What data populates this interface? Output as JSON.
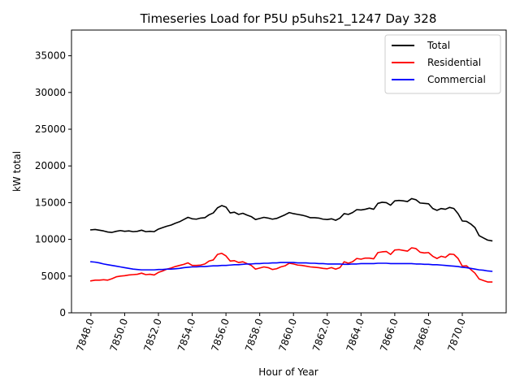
{
  "chart_data": {
    "type": "line",
    "title": "Timeseries Load for P5U p5uhs21_1247  Day 328",
    "xlabel": "Hour of Year",
    "ylabel": "kW total",
    "xlim": [
      7846.85,
      7872.6
    ],
    "ylim": [
      0,
      38500
    ],
    "xticks": [
      7848,
      7850,
      7852,
      7854,
      7856,
      7858,
      7860,
      7862,
      7864,
      7866,
      7868,
      7870
    ],
    "xtick_labels": [
      "7848.0",
      "7850.0",
      "7852.0",
      "7854.0",
      "7856.0",
      "7858.0",
      "7860.0",
      "7862.0",
      "7864.0",
      "7866.0",
      "7868.0",
      "7870.0"
    ],
    "yticks": [
      0,
      5000,
      10000,
      15000,
      20000,
      25000,
      30000,
      35000
    ],
    "ytick_labels": [
      "0",
      "5000",
      "10000",
      "15000",
      "20000",
      "25000",
      "30000",
      "35000"
    ],
    "legend_position": "top-right",
    "x": [
      7848.0,
      7848.25,
      7848.5,
      7848.75,
      7849.0,
      7849.25,
      7849.5,
      7849.75,
      7850.0,
      7850.25,
      7850.5,
      7850.75,
      7851.0,
      7851.25,
      7851.5,
      7851.75,
      7852.0,
      7852.25,
      7852.5,
      7852.75,
      7853.0,
      7853.25,
      7853.5,
      7853.75,
      7854.0,
      7854.25,
      7854.5,
      7854.75,
      7855.0,
      7855.25,
      7855.5,
      7855.75,
      7856.0,
      7856.25,
      7856.5,
      7856.75,
      7857.0,
      7857.25,
      7857.5,
      7857.75,
      7858.0,
      7858.25,
      7858.5,
      7858.75,
      7859.0,
      7859.25,
      7859.5,
      7859.75,
      7860.0,
      7860.25,
      7860.5,
      7860.75,
      7861.0,
      7861.25,
      7861.5,
      7861.75,
      7862.0,
      7862.25,
      7862.5,
      7862.75,
      7863.0,
      7863.25,
      7863.5,
      7863.75,
      7864.0,
      7864.25,
      7864.5,
      7864.75,
      7865.0,
      7865.25,
      7865.5,
      7865.75,
      7866.0,
      7866.25,
      7866.5,
      7866.75,
      7867.0,
      7867.25,
      7867.5,
      7867.75,
      7868.0,
      7868.25,
      7868.5,
      7868.75,
      7869.0,
      7869.25,
      7869.5,
      7869.75,
      7870.0,
      7870.25,
      7870.5,
      7870.75,
      7871.0,
      7871.25,
      7871.5,
      7871.75
    ],
    "series": [
      {
        "name": "Total",
        "color": "#000000",
        "values": [
          11300,
          11350,
          11250,
          11150,
          11000,
          10950,
          11100,
          11200,
          11100,
          11150,
          11050,
          11100,
          11250,
          11050,
          11100,
          11050,
          11400,
          11600,
          11800,
          11950,
          12200,
          12400,
          12700,
          13000,
          12800,
          12750,
          12900,
          12950,
          13350,
          13600,
          14300,
          14600,
          14400,
          13600,
          13700,
          13400,
          13550,
          13300,
          13100,
          12700,
          12850,
          13000,
          12900,
          12750,
          12850,
          13100,
          13350,
          13650,
          13500,
          13400,
          13300,
          13150,
          12950,
          12950,
          12900,
          12750,
          12700,
          12800,
          12600,
          12900,
          13500,
          13400,
          13650,
          14050,
          14000,
          14100,
          14250,
          14100,
          14900,
          15050,
          15000,
          14650,
          15250,
          15300,
          15250,
          15150,
          15550,
          15400,
          14950,
          14900,
          14850,
          14200,
          13950,
          14200,
          14100,
          14350,
          14200,
          13500,
          12500,
          12450,
          12100,
          11600,
          10500,
          10200,
          9900,
          9800
        ]
      },
      {
        "name": "Residential",
        "color": "#ff0000",
        "values": [
          4350,
          4450,
          4450,
          4500,
          4450,
          4650,
          4900,
          5000,
          5050,
          5150,
          5200,
          5250,
          5400,
          5200,
          5250,
          5150,
          5500,
          5700,
          5950,
          6100,
          6300,
          6450,
          6600,
          6800,
          6450,
          6450,
          6500,
          6650,
          7050,
          7200,
          7950,
          8100,
          7750,
          7050,
          7100,
          6850,
          6950,
          6700,
          6450,
          5950,
          6100,
          6250,
          6150,
          5900,
          6000,
          6250,
          6400,
          6750,
          6650,
          6500,
          6450,
          6350,
          6250,
          6200,
          6150,
          6050,
          6000,
          6150,
          5950,
          6150,
          6950,
          6750,
          6950,
          7400,
          7300,
          7450,
          7450,
          7350,
          8200,
          8300,
          8350,
          7950,
          8550,
          8600,
          8500,
          8400,
          8850,
          8750,
          8250,
          8150,
          8200,
          7700,
          7400,
          7700,
          7550,
          8000,
          7950,
          7400,
          6350,
          6400,
          5900,
          5400,
          4600,
          4400,
          4200,
          4200
        ]
      },
      {
        "name": "Commercial",
        "color": "#0000ff",
        "values": [
          6950,
          6900,
          6800,
          6650,
          6550,
          6450,
          6350,
          6250,
          6150,
          6050,
          5950,
          5900,
          5850,
          5850,
          5850,
          5850,
          5900,
          5900,
          5950,
          5950,
          6000,
          6050,
          6150,
          6200,
          6250,
          6250,
          6300,
          6300,
          6350,
          6400,
          6400,
          6450,
          6450,
          6500,
          6550,
          6550,
          6600,
          6650,
          6650,
          6700,
          6700,
          6750,
          6750,
          6800,
          6800,
          6850,
          6850,
          6850,
          6850,
          6800,
          6800,
          6800,
          6750,
          6750,
          6700,
          6700,
          6650,
          6650,
          6650,
          6650,
          6600,
          6600,
          6650,
          6650,
          6700,
          6700,
          6700,
          6700,
          6750,
          6750,
          6750,
          6700,
          6700,
          6700,
          6700,
          6700,
          6700,
          6650,
          6650,
          6600,
          6600,
          6550,
          6550,
          6500,
          6450,
          6400,
          6350,
          6300,
          6200,
          6150,
          6050,
          5950,
          5850,
          5800,
          5700,
          5650
        ]
      }
    ]
  }
}
